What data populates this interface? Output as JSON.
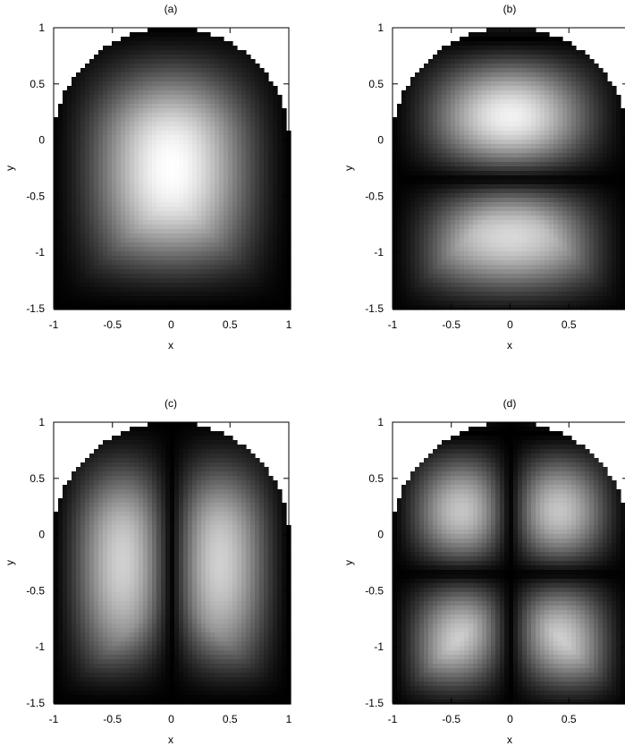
{
  "chart_data": [
    {
      "type": "heatmap",
      "title": "(a)",
      "xlabel": "x",
      "ylabel": "y",
      "xlim": [
        -1,
        1
      ],
      "ylim": [
        -1.5,
        1
      ],
      "x_ticks": [
        "-1",
        "-0.5",
        "0",
        "0.5",
        "1"
      ],
      "y_ticks": [
        "1",
        "0.5",
        "0",
        "-0.5",
        "-1",
        "-1.5"
      ],
      "domain": "stadium: rectangle x in [-1,1], y in [-1.5,0] capped by unit half-disk above y=0",
      "colormap": [
        "#000000",
        "#ffffff"
      ],
      "mode": {
        "nodes_x": 0,
        "nodes_y": 0,
        "bright_spots": [
          [
            0,
            -0.35
          ]
        ]
      }
    },
    {
      "type": "heatmap",
      "title": "(b)",
      "xlabel": "x",
      "ylabel": "y",
      "xlim": [
        -1,
        1
      ],
      "ylim": [
        -1.5,
        1
      ],
      "x_ticks": [
        "-1",
        "-0.5",
        "0",
        "0.5"
      ],
      "y_ticks": [
        "1",
        "0.5",
        "0",
        "-0.5",
        "-1",
        "-1.5"
      ],
      "domain": "stadium: rectangle x in [-1,1], y in [-1.5,0] capped by unit half-disk above y=0",
      "colormap": [
        "#000000",
        "#ffffff"
      ],
      "mode": {
        "nodes_x": 0,
        "nodes_y": 1,
        "bright_spots": [
          [
            0,
            0.3
          ],
          [
            0,
            -0.95
          ]
        ]
      }
    },
    {
      "type": "heatmap",
      "title": "(c)",
      "xlabel": "x",
      "ylabel": "y",
      "xlim": [
        -1,
        1
      ],
      "ylim": [
        -1.5,
        1
      ],
      "x_ticks": [
        "-1",
        "-0.5",
        "0",
        "0.5",
        "1"
      ],
      "y_ticks": [
        "1",
        "0.5",
        "0",
        "-0.5",
        "-1",
        "-1.5"
      ],
      "domain": "stadium: rectangle x in [-1,1], y in [-1.5,0] capped by unit half-disk above y=0",
      "colormap": [
        "#000000",
        "#ffffff"
      ],
      "mode": {
        "nodes_x": 1,
        "nodes_y": 0,
        "bright_spots": [
          [
            -0.5,
            -0.4
          ],
          [
            0.5,
            -0.4
          ]
        ]
      }
    },
    {
      "type": "heatmap",
      "title": "(d)",
      "xlabel": "x",
      "ylabel": "y",
      "xlim": [
        -1,
        1
      ],
      "ylim": [
        -1.5,
        1
      ],
      "x_ticks": [
        "-1",
        "-0.5",
        "0",
        "0.5"
      ],
      "y_ticks": [
        "1",
        "0.5",
        "0",
        "-0.5",
        "-1",
        "-1.5"
      ],
      "domain": "stadium: rectangle x in [-1,1], y in [-1.5,0] capped by unit half-disk above y=0",
      "colormap": [
        "#000000",
        "#ffffff"
      ],
      "mode": {
        "nodes_x": 1,
        "nodes_y": 1,
        "bright_spots": [
          [
            -0.5,
            0.2
          ],
          [
            0.5,
            0.2
          ],
          [
            -0.5,
            -0.95
          ],
          [
            0.5,
            -0.95
          ]
        ]
      }
    }
  ]
}
